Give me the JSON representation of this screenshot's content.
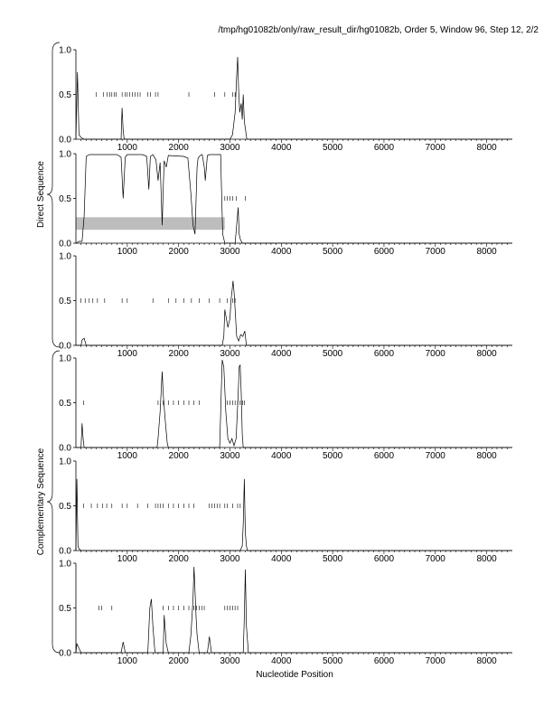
{
  "header": {
    "title": "/tmp/hg01082b/only/raw_result_dir/hg01082b, Order 5, Window 96, Step 12, 2/2"
  },
  "groups": [
    {
      "label": "Direct Sequence"
    },
    {
      "label": "Complementary Sequence"
    }
  ],
  "chart_data": [
    {
      "type": "line",
      "group": "Direct Sequence",
      "xlabel": "",
      "ylabel": "",
      "xlim": [
        0,
        8500
      ],
      "ylim": [
        0,
        1
      ],
      "xticks": [
        1000,
        2000,
        3000,
        4000,
        5000,
        6000,
        7000,
        8000
      ],
      "yticks": [
        0.0,
        0.5,
        1.0
      ],
      "ytick_labels": [
        "0.0",
        "0.5",
        "1.0"
      ],
      "series": [
        {
          "values_x": [
            0,
            30,
            60,
            100,
            160,
            300,
            880,
            900,
            920,
            940,
            1000,
            3000,
            3050,
            3100,
            3130,
            3150,
            3170,
            3190,
            3220,
            3240,
            3260,
            3280,
            3330,
            8500
          ],
          "values_y": [
            0.0,
            0.75,
            0.05,
            0.02,
            0.0,
            0.0,
            0.0,
            0.35,
            0.1,
            0.0,
            0.0,
            0.0,
            0.05,
            0.3,
            0.7,
            0.92,
            0.55,
            0.3,
            0.4,
            0.22,
            0.5,
            0.2,
            0.0,
            0.0
          ]
        }
      ],
      "markers": {
        "y": 0.5,
        "x": [
          400,
          540,
          610,
          660,
          700,
          750,
          780,
          900,
          960,
          1000,
          1050,
          1100,
          1150,
          1200,
          1250,
          1400,
          1450,
          1550,
          1600,
          2200,
          2700,
          2900,
          3050,
          3100
        ]
      },
      "shade": null
    },
    {
      "type": "line",
      "group": "Direct Sequence",
      "xlabel": "",
      "ylabel": "",
      "xlim": [
        0,
        8500
      ],
      "ylim": [
        0,
        1
      ],
      "xticks": [
        1000,
        2000,
        3000,
        4000,
        5000,
        6000,
        7000,
        8000
      ],
      "yticks": [
        0.0,
        0.5,
        1.0
      ],
      "ytick_labels": [
        "0.0",
        "0.5",
        "1.0"
      ],
      "series": [
        {
          "values_x": [
            0,
            60,
            120,
            160,
            200,
            260,
            400,
            800,
            880,
            920,
            960,
            1000,
            1300,
            1380,
            1420,
            1450,
            1500,
            1560,
            1600,
            1640,
            1680,
            1700,
            1720,
            1760,
            1800,
            2100,
            2180,
            2240,
            2280,
            2320,
            2360,
            2380,
            2420,
            2460,
            2500,
            2520,
            2560,
            2600,
            2760,
            2820,
            2840,
            2860,
            2900,
            3100,
            3160,
            3180,
            3200,
            3240,
            8500
          ],
          "values_y": [
            0.0,
            0.02,
            0.02,
            0.3,
            0.97,
            0.99,
            0.99,
            0.99,
            0.96,
            0.5,
            0.96,
            0.99,
            0.99,
            0.97,
            0.6,
            0.97,
            0.99,
            0.93,
            0.7,
            0.9,
            0.2,
            0.6,
            0.92,
            0.85,
            0.98,
            0.97,
            0.95,
            0.55,
            0.2,
            0.1,
            0.85,
            0.95,
            0.98,
            0.99,
            0.85,
            0.7,
            0.98,
            0.99,
            0.99,
            0.99,
            0.5,
            0.1,
            0.0,
            0.0,
            0.4,
            0.1,
            0.05,
            0.0,
            0.0
          ]
        }
      ],
      "markers": {
        "y": 0.5,
        "x": [
          2900,
          2950,
          3000,
          3050,
          3120,
          3300
        ]
      },
      "shade": {
        "x0": 0,
        "x1": 2900,
        "y0": 0.15,
        "y1": 0.29,
        "color": "#bdbdbd"
      }
    },
    {
      "type": "line",
      "group": "Direct Sequence",
      "xlabel": "",
      "ylabel": "",
      "xlim": [
        0,
        8500
      ],
      "ylim": [
        0,
        1
      ],
      "xticks": [
        1000,
        2000,
        3000,
        4000,
        5000,
        6000,
        7000,
        8000
      ],
      "yticks": [
        0.0,
        0.5,
        1.0
      ],
      "ytick_labels": [
        "0.0",
        "0.5",
        "1.0"
      ],
      "series": [
        {
          "values_x": [
            0,
            100,
            120,
            160,
            200,
            2850,
            2880,
            2900,
            2930,
            2960,
            3000,
            3020,
            3040,
            3060,
            3080,
            3100,
            3130,
            3170,
            3210,
            3250,
            3290,
            3320,
            3350,
            8500
          ],
          "values_y": [
            0.0,
            0.0,
            0.06,
            0.08,
            0.0,
            0.0,
            0.1,
            0.4,
            0.3,
            0.2,
            0.3,
            0.5,
            0.6,
            0.72,
            0.6,
            0.4,
            0.1,
            0.05,
            0.12,
            0.1,
            0.16,
            0.0,
            0.0,
            0.0
          ]
        }
      ],
      "markers": {
        "y": 0.5,
        "x": [
          100,
          180,
          260,
          330,
          420,
          560,
          900,
          1000,
          1500,
          1800,
          1950,
          2100,
          2250,
          2400,
          2600,
          2800,
          2950,
          3050,
          3100
        ]
      },
      "shade": null
    },
    {
      "type": "line",
      "group": "Complementary Sequence",
      "xlabel": "",
      "ylabel": "",
      "xlim": [
        0,
        8500
      ],
      "ylim": [
        0,
        1
      ],
      "xticks": [
        1000,
        2000,
        3000,
        4000,
        5000,
        6000,
        7000,
        8000
      ],
      "yticks": [
        0.0,
        0.5,
        1.0
      ],
      "ytick_labels": [
        "0.0",
        "0.5",
        "1.0"
      ],
      "series": [
        {
          "values_x": [
            0,
            100,
            120,
            140,
            160,
            1580,
            1600,
            1640,
            1680,
            1700,
            1740,
            1780,
            1800,
            2800,
            2850,
            2880,
            2920,
            2960,
            3000,
            3040,
            3080,
            3120,
            3160,
            3180,
            3200,
            3220,
            3240,
            3260,
            8500
          ],
          "values_y": [
            0.0,
            0.0,
            0.27,
            0.1,
            0.0,
            0.0,
            0.1,
            0.4,
            0.85,
            0.6,
            0.3,
            0.05,
            0.0,
            0.0,
            0.98,
            0.9,
            0.4,
            0.1,
            0.05,
            0.1,
            0.02,
            0.1,
            0.6,
            0.9,
            0.92,
            0.6,
            0.15,
            0.0,
            0.0
          ]
        }
      ],
      "markers": {
        "y": 0.5,
        "x": [
          150,
          1600,
          1700,
          1800,
          1900,
          2000,
          2100,
          2200,
          2300,
          2400,
          2950,
          3000,
          3050,
          3100,
          3150,
          3200,
          3250,
          3280
        ]
      },
      "shade": null
    },
    {
      "type": "line",
      "group": "Complementary Sequence",
      "xlabel": "",
      "ylabel": "",
      "xlim": [
        0,
        8500
      ],
      "ylim": [
        0,
        1
      ],
      "xticks": [
        1000,
        2000,
        3000,
        4000,
        5000,
        6000,
        7000,
        8000
      ],
      "yticks": [
        0.0,
        0.5,
        1.0
      ],
      "ytick_labels": [
        "0.0",
        "0.5",
        "1.0"
      ],
      "series": [
        {
          "values_x": [
            0,
            20,
            40,
            60,
            100,
            3200,
            3240,
            3260,
            3280,
            3300,
            3320,
            3340,
            8500
          ],
          "values_y": [
            0.0,
            0.8,
            0.05,
            0.02,
            0.0,
            0.0,
            0.05,
            0.3,
            0.8,
            0.2,
            0.05,
            0.0,
            0.0
          ]
        }
      ],
      "markers": {
        "y": 0.5,
        "x": [
          150,
          300,
          420,
          520,
          600,
          700,
          900,
          1000,
          1200,
          1400,
          1550,
          1600,
          1650,
          1700,
          1800,
          1900,
          2000,
          2100,
          2200,
          2300,
          2600,
          2650,
          2700,
          2750,
          2800,
          2900,
          2950,
          3050,
          3150,
          3200
        ]
      },
      "shade": null
    },
    {
      "type": "line",
      "group": "Complementary Sequence",
      "xlabel": "Nucleotide Position",
      "ylabel": "",
      "xlim": [
        0,
        8500
      ],
      "ylim": [
        0,
        1
      ],
      "xticks": [
        1000,
        2000,
        3000,
        4000,
        5000,
        6000,
        7000,
        8000
      ],
      "yticks": [
        0.0,
        0.5,
        1.0
      ],
      "ytick_labels": [
        "0.0",
        "0.5",
        "1.0"
      ],
      "series": [
        {
          "values_x": [
            0,
            20,
            60,
            100,
            880,
            920,
            960,
            1400,
            1440,
            1470,
            1500,
            1540,
            1700,
            1720,
            1760,
            1800,
            2200,
            2240,
            2280,
            2300,
            2320,
            2340,
            2360,
            2400,
            2560,
            2600,
            2640,
            3260,
            3280,
            3300,
            3320,
            3360,
            8500
          ],
          "values_y": [
            0.0,
            0.1,
            0.05,
            0.0,
            0.0,
            0.12,
            0.0,
            0.0,
            0.5,
            0.6,
            0.3,
            0.0,
            0.0,
            0.42,
            0.1,
            0.0,
            0.0,
            0.2,
            0.6,
            0.96,
            0.7,
            0.4,
            0.2,
            0.0,
            0.0,
            0.18,
            0.0,
            0.0,
            0.4,
            0.93,
            0.3,
            0.0,
            0.0
          ]
        }
      ],
      "markers": {
        "y": 0.5,
        "x": [
          450,
          500,
          700,
          1700,
          1800,
          1900,
          2000,
          2100,
          2200,
          2300,
          2350,
          2400,
          2450,
          2500,
          2900,
          2950,
          3000,
          3050,
          3100,
          3150
        ]
      },
      "shade": null
    }
  ]
}
